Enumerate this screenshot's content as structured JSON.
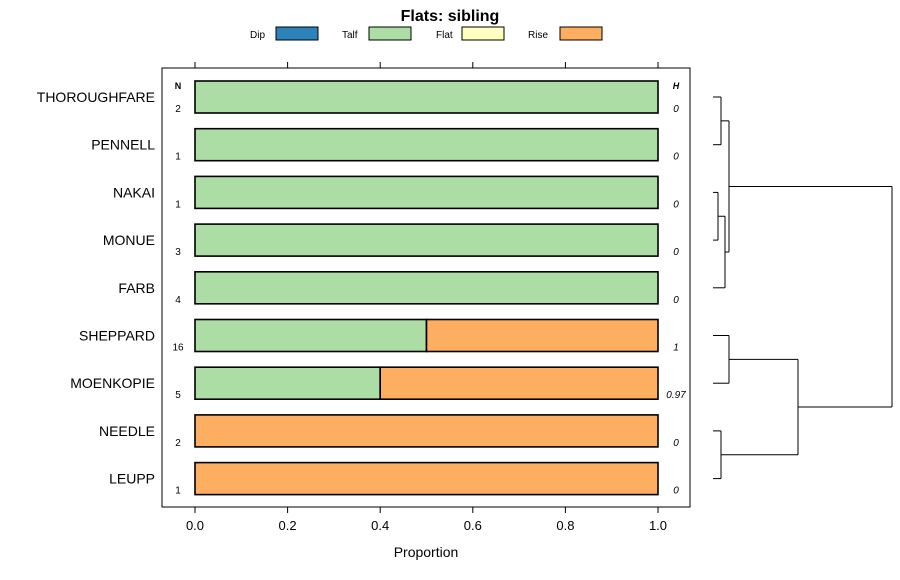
{
  "chart_data": {
    "type": "bar",
    "orientation": "horizontal",
    "stacked": true,
    "title": "Flats: sibling",
    "xlabel": "Proportion",
    "xlim": [
      0,
      1
    ],
    "x_ticks": [
      "0.0",
      "0.2",
      "0.4",
      "0.6",
      "0.8",
      "1.0"
    ],
    "legend_position": "top",
    "legend": [
      {
        "name": "Dip",
        "color": "#2b83ba"
      },
      {
        "name": "Talf",
        "color": "#abdda4"
      },
      {
        "name": "Flat",
        "color": "#ffffbf"
      },
      {
        "name": "Rise",
        "color": "#fdae61"
      }
    ],
    "n_header": "N",
    "h_header": "H",
    "categories": [
      "THOROUGHFARE",
      "PENNELL",
      "NAKAI",
      "MONUE",
      "FARB",
      "SHEPPARD",
      "MOENKOPIE",
      "NEEDLE",
      "LEUPP"
    ],
    "n_values": [
      "2",
      "1",
      "1",
      "3",
      "4",
      "16",
      "5",
      "2",
      "1"
    ],
    "h_values": [
      "0",
      "0",
      "0",
      "0",
      "0",
      "1",
      "0.97",
      "0",
      "0"
    ],
    "series": [
      {
        "name": "Dip",
        "values": [
          0,
          0,
          0,
          0,
          0,
          0,
          0,
          0,
          0
        ]
      },
      {
        "name": "Talf",
        "values": [
          1,
          1,
          1,
          1,
          1,
          0.5,
          0.4,
          0,
          0
        ]
      },
      {
        "name": "Flat",
        "values": [
          0,
          0,
          0,
          0,
          0,
          0,
          0,
          0,
          0
        ]
      },
      {
        "name": "Rise",
        "values": [
          0,
          0,
          0,
          0,
          0,
          0.5,
          0.6,
          1,
          1
        ]
      }
    ],
    "dendrogram": {
      "present": true,
      "merges": [
        [
          0,
          1
        ],
        [
          2,
          3
        ],
        [
          "m1",
          4
        ],
        [
          "m0",
          "m2"
        ],
        [
          5,
          6
        ],
        [
          7,
          8
        ],
        [
          "m4",
          "m5"
        ],
        [
          "m3",
          "m6"
        ]
      ]
    }
  }
}
